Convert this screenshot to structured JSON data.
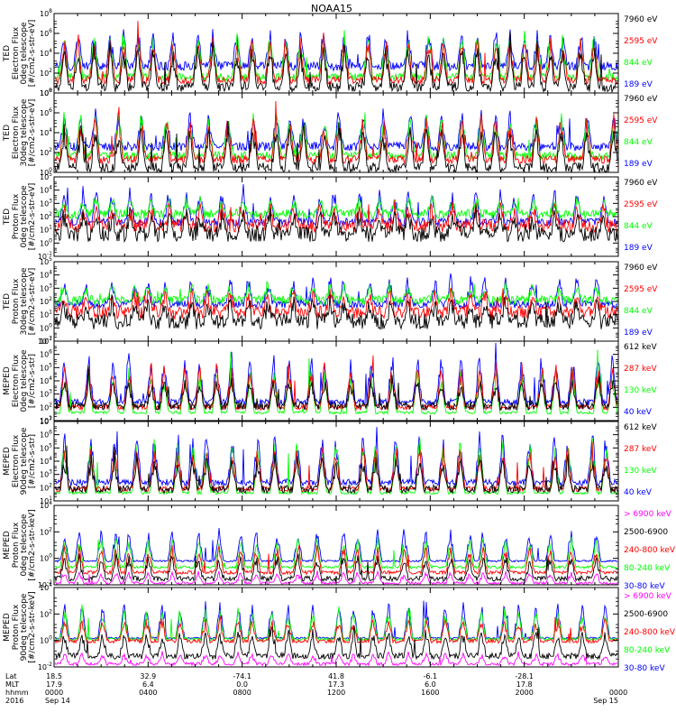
{
  "title": "NOAA15",
  "colors": {
    "black": "#000000",
    "red": "#ff0000",
    "green": "#00ff00",
    "blue": "#0000ff",
    "magenta": "#ff00ff"
  },
  "chart_data": [
    {
      "type": "line",
      "log_y": true,
      "ylabel": [
        "TED",
        "Electron Flux",
        "0deg telescope",
        "[#/cm2-s-str-eV]"
      ],
      "yticks": [
        "10^0",
        "10^2",
        "10^4",
        "10^6",
        "10^8"
      ],
      "ylim": [
        0,
        8
      ],
      "legend": [
        {
          "label": "7960 eV",
          "color": "#000000"
        },
        {
          "label": "2595 eV",
          "color": "#ff0000"
        },
        {
          "label": "844 eV",
          "color": "#00ff00"
        },
        {
          "label": "189 eV",
          "color": "#0000ff"
        }
      ],
      "series": [
        {
          "color": "#0000ff",
          "base": 2.7,
          "peak": 6.6,
          "noise": 0.45
        },
        {
          "color": "#00ff00",
          "base": 1.6,
          "peak": 6.4,
          "noise": 0.4
        },
        {
          "color": "#ff0000",
          "base": 1.3,
          "peak": 6.0,
          "noise": 0.4
        },
        {
          "color": "#000000",
          "base": 0.6,
          "peak": 5.2,
          "noise": 0.5
        }
      ]
    },
    {
      "type": "line",
      "log_y": true,
      "ylabel": [
        "TED",
        "Electron Flux",
        "30deg telescope",
        "[#/cm2-s-str-eV]"
      ],
      "yticks": [
        "10^0",
        "10^2",
        "10^4",
        "10^6",
        "10^8"
      ],
      "ylim": [
        0,
        8
      ],
      "legend": [
        {
          "label": "7960 eV",
          "color": "#000000"
        },
        {
          "label": "2595 eV",
          "color": "#ff0000"
        },
        {
          "label": "844 eV",
          "color": "#00ff00"
        },
        {
          "label": "189 eV",
          "color": "#0000ff"
        }
      ],
      "series": [
        {
          "color": "#0000ff",
          "base": 2.6,
          "peak": 6.5,
          "noise": 0.45
        },
        {
          "color": "#00ff00",
          "base": 1.7,
          "peak": 6.3,
          "noise": 0.4
        },
        {
          "color": "#ff0000",
          "base": 1.3,
          "peak": 6.0,
          "noise": 0.4
        },
        {
          "color": "#000000",
          "base": 0.5,
          "peak": 5.0,
          "noise": 0.5
        }
      ]
    },
    {
      "type": "line",
      "log_y": true,
      "ylabel": [
        "TED",
        "Proton Flux",
        "0deg telescope",
        "[#/cm2-s-str-eV]"
      ],
      "yticks": [
        "10^-1",
        "10^0",
        "10^1",
        "10^2",
        "10^3",
        "10^4",
        "10^5"
      ],
      "ylim": [
        -1,
        5
      ],
      "legend": [
        {
          "label": "7960 eV",
          "color": "#000000"
        },
        {
          "label": "2595 eV",
          "color": "#ff0000"
        },
        {
          "label": "844 eV",
          "color": "#00ff00"
        },
        {
          "label": "189 eV",
          "color": "#0000ff"
        }
      ],
      "series": [
        {
          "color": "#0000ff",
          "base": 1.6,
          "peak": 4.3,
          "noise": 0.3
        },
        {
          "color": "#00ff00",
          "base": 2.2,
          "peak": 3.4,
          "noise": 0.35
        },
        {
          "color": "#ff0000",
          "base": 1.3,
          "peak": 3.0,
          "noise": 0.5
        },
        {
          "color": "#000000",
          "base": 0.7,
          "peak": 2.4,
          "noise": 0.6
        }
      ]
    },
    {
      "type": "line",
      "log_y": true,
      "ylabel": [
        "TED",
        "Proton Flux",
        "30deg telescope",
        "[#/cm2-s-str-eV]"
      ],
      "yticks": [
        "10^-1",
        "10^0",
        "10^1",
        "10^2",
        "10^3",
        "10^4",
        "10^5"
      ],
      "ylim": [
        -1,
        5
      ],
      "legend": [
        {
          "label": "7960 eV",
          "color": "#000000"
        },
        {
          "label": "2595 eV",
          "color": "#ff0000"
        },
        {
          "label": "844 eV",
          "color": "#00ff00"
        },
        {
          "label": "189 eV",
          "color": "#0000ff"
        }
      ],
      "series": [
        {
          "color": "#0000ff",
          "base": 1.8,
          "peak": 4.0,
          "noise": 0.3
        },
        {
          "color": "#00ff00",
          "base": 2.1,
          "peak": 3.3,
          "noise": 0.35
        },
        {
          "color": "#ff0000",
          "base": 1.2,
          "peak": 2.8,
          "noise": 0.5
        },
        {
          "color": "#000000",
          "base": 0.5,
          "peak": 2.2,
          "noise": 0.6
        }
      ]
    },
    {
      "type": "line",
      "log_y": true,
      "ylabel": [
        "MEPED",
        "Electron Flux",
        "0deg telescope",
        "[#/cm2-s-str]"
      ],
      "yticks": [
        "10^1",
        "10^2",
        "10^3",
        "10^4",
        "10^5",
        "10^6",
        "10^7"
      ],
      "ylim": [
        1,
        7
      ],
      "legend": [
        {
          "label": "612 keV",
          "color": "#000000"
        },
        {
          "label": "287 keV",
          "color": "#ff0000"
        },
        {
          "label": "130 keV",
          "color": "#00ff00"
        },
        {
          "label": "40 keV",
          "color": "#0000ff"
        }
      ],
      "series": [
        {
          "color": "#0000ff",
          "base": 2.4,
          "peak": 6.4,
          "noise": 0.25
        },
        {
          "color": "#00ff00",
          "base": 1.6,
          "peak": 5.2,
          "noise": 0.1
        },
        {
          "color": "#ff0000",
          "base": 2.0,
          "peak": 5.6,
          "noise": 0.2
        },
        {
          "color": "#000000",
          "base": 2.1,
          "peak": 4.4,
          "noise": 0.3
        }
      ]
    },
    {
      "type": "line",
      "log_y": true,
      "ylabel": [
        "MEPED",
        "Electron Flux",
        "90deg telescope",
        "[#/cm2-s-str]"
      ],
      "yticks": [
        "10^1",
        "10^2",
        "10^3",
        "10^4",
        "10^5",
        "10^6",
        "10^7"
      ],
      "ylim": [
        1,
        7
      ],
      "legend": [
        {
          "label": "612 keV",
          "color": "#000000"
        },
        {
          "label": "287 keV",
          "color": "#ff0000"
        },
        {
          "label": "130 keV",
          "color": "#00ff00"
        },
        {
          "label": "40 keV",
          "color": "#0000ff"
        }
      ],
      "series": [
        {
          "color": "#0000ff",
          "base": 2.4,
          "peak": 6.5,
          "noise": 0.25
        },
        {
          "color": "#00ff00",
          "base": 1.6,
          "peak": 6.0,
          "noise": 0.1
        },
        {
          "color": "#ff0000",
          "base": 1.9,
          "peak": 5.5,
          "noise": 0.2
        },
        {
          "color": "#000000",
          "base": 1.9,
          "peak": 4.6,
          "noise": 0.3
        }
      ]
    },
    {
      "type": "line",
      "log_y": true,
      "ylabel": [
        "MEPED",
        "Proton Flux",
        "0deg telescope",
        "[#/cm2-s-str-keV]"
      ],
      "yticks": [
        "10^-2",
        "10^0",
        "10^2",
        "10^4"
      ],
      "ylim": [
        -3,
        6
      ],
      "legend": [
        {
          "label": "> 6900 keV",
          "color": "#ff00ff"
        },
        {
          "label": "2500-6900",
          "color": "#000000"
        },
        {
          "label": "240-800 keV",
          "color": "#ff0000"
        },
        {
          "label": "80-240 keV",
          "color": "#00ff00"
        },
        {
          "label": "30-80 keV",
          "color": "#0000ff"
        }
      ],
      "series": [
        {
          "color": "#0000ff",
          "base": -0.3,
          "peak": 3.6,
          "noise": 0.1
        },
        {
          "color": "#00ff00",
          "base": -1.0,
          "peak": 2.6,
          "noise": 0.15
        },
        {
          "color": "#ff0000",
          "base": -1.6,
          "peak": 1.6,
          "noise": 0.2
        },
        {
          "color": "#000000",
          "base": -2.3,
          "peak": 0.6,
          "noise": 0.3
        },
        {
          "color": "#ff00ff",
          "base": -2.8,
          "peak": -1.4,
          "noise": 0.15
        }
      ]
    },
    {
      "type": "line",
      "log_y": true,
      "ylabel": [
        "MEPED",
        "Proton Flux",
        "90deg telescope",
        "[#/cm2-s-str-keV]"
      ],
      "yticks": [
        "10^-2",
        "10^0",
        "10^2",
        "10^4"
      ],
      "ylim": [
        -3,
        5
      ],
      "legend": [
        {
          "label": "> 6900 keV",
          "color": "#ff00ff"
        },
        {
          "label": "2500-6900",
          "color": "#000000"
        },
        {
          "label": "240-800 keV",
          "color": "#ff0000"
        },
        {
          "label": "80-240 keV",
          "color": "#00ff00"
        },
        {
          "label": "30-80 keV",
          "color": "#0000ff"
        }
      ],
      "series": [
        {
          "color": "#0000ff",
          "base": -0.1,
          "peak": 3.8,
          "noise": 0.1
        },
        {
          "color": "#00ff00",
          "base": -0.2,
          "peak": 3.2,
          "noise": 0.15
        },
        {
          "color": "#ff0000",
          "base": -0.4,
          "peak": 2.2,
          "noise": 0.2
        },
        {
          "color": "#000000",
          "base": -1.9,
          "peak": 1.0,
          "noise": 0.3
        },
        {
          "color": "#ff00ff",
          "base": -2.7,
          "peak": -1.5,
          "noise": 0.15
        }
      ]
    }
  ],
  "xaxis": {
    "rows": [
      "Lat",
      "MLT",
      "hhmm",
      "2016"
    ],
    "ticks": [
      {
        "values": [
          "18.5",
          "17.9",
          "0000",
          "Sep 14"
        ]
      },
      {
        "values": [
          "32.9",
          "6.4",
          "0400",
          ""
        ]
      },
      {
        "values": [
          "-74.1",
          "0.0",
          "0800",
          ""
        ]
      },
      {
        "values": [
          "41.8",
          "17.3",
          "1200",
          ""
        ]
      },
      {
        "values": [
          "-6.1",
          "6.0",
          "1600",
          ""
        ]
      },
      {
        "values": [
          "-28.1",
          "17.8",
          "2000",
          ""
        ]
      },
      {
        "values": [
          "",
          "",
          "0000",
          "Sep 15"
        ]
      }
    ]
  }
}
